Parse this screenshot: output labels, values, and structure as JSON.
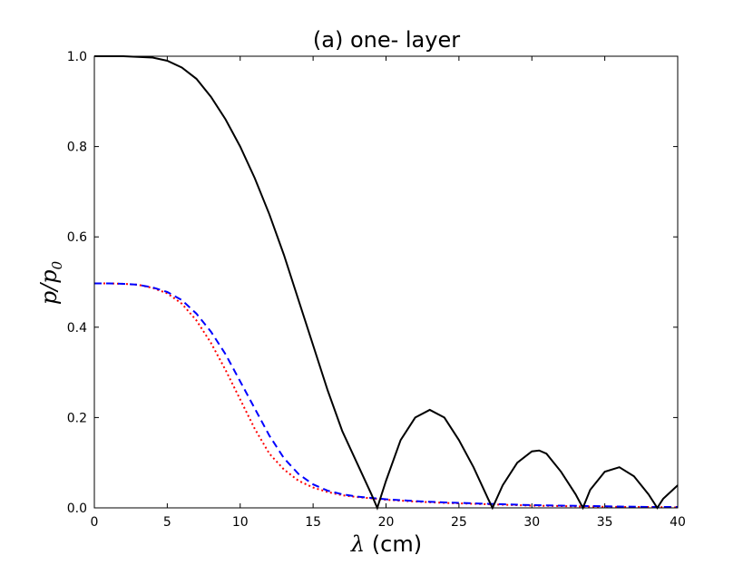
{
  "chart_data": {
    "type": "line",
    "title": "(a) one- layer",
    "xlabel_symbol": "λ",
    "xlabel_unit": " (cm)",
    "ylabel": "p/p",
    "ylabel_sub": "0",
    "xlim": [
      0,
      40
    ],
    "ylim": [
      0,
      1.0
    ],
    "xticks": [
      "0",
      "5",
      "10",
      "15",
      "20",
      "25",
      "30",
      "35",
      "40"
    ],
    "yticks": [
      "0.0",
      "0.2",
      "0.4",
      "0.6",
      "0.8",
      "1.0"
    ],
    "grid": false,
    "legend": "none",
    "series": [
      {
        "color": "#000000",
        "style": "solid",
        "x": [
          0,
          2,
          4,
          5,
          6,
          7,
          8,
          9,
          10,
          11,
          12,
          13,
          14,
          15,
          16,
          17,
          18,
          19,
          19.4,
          20,
          21,
          22,
          23,
          24,
          25,
          26,
          27,
          27.3,
          28,
          29,
          30,
          30.5,
          31,
          32,
          33,
          33.5,
          34,
          35,
          36,
          37,
          38,
          38.6,
          39,
          40
        ],
        "y": [
          1.0,
          1.0,
          0.997,
          0.99,
          0.975,
          0.95,
          0.91,
          0.86,
          0.8,
          0.73,
          0.65,
          0.56,
          0.46,
          0.36,
          0.26,
          0.17,
          0.1,
          0.03,
          0.0,
          0.06,
          0.15,
          0.2,
          0.217,
          0.2,
          0.15,
          0.09,
          0.02,
          0.0,
          0.05,
          0.1,
          0.125,
          0.127,
          0.12,
          0.08,
          0.03,
          0.0,
          0.04,
          0.08,
          0.09,
          0.07,
          0.03,
          0.0,
          0.02,
          0.05
        ]
      },
      {
        "color": "#0000ff",
        "style": "dashed",
        "x": [
          0,
          1,
          2,
          3,
          4,
          5,
          6,
          7,
          8,
          9,
          10,
          11,
          12,
          13,
          14,
          15,
          16,
          17,
          18,
          19,
          20,
          22,
          24,
          26,
          28,
          30,
          32,
          34,
          36,
          38,
          40
        ],
        "y": [
          0.497,
          0.497,
          0.496,
          0.494,
          0.488,
          0.478,
          0.46,
          0.43,
          0.39,
          0.34,
          0.28,
          0.22,
          0.16,
          0.11,
          0.075,
          0.052,
          0.038,
          0.03,
          0.025,
          0.022,
          0.019,
          0.015,
          0.012,
          0.01,
          0.008,
          0.006,
          0.005,
          0.004,
          0.003,
          0.002,
          0.002
        ]
      },
      {
        "color": "#ff0000",
        "style": "dotted",
        "x": [
          0,
          1,
          2,
          3,
          4,
          5,
          6,
          7,
          8,
          9,
          10,
          11,
          12,
          13,
          14,
          15,
          16,
          17,
          18,
          19,
          20,
          22,
          24,
          26,
          28,
          30,
          32,
          34,
          36,
          38,
          40
        ],
        "y": [
          0.497,
          0.497,
          0.496,
          0.494,
          0.487,
          0.475,
          0.452,
          0.415,
          0.365,
          0.305,
          0.24,
          0.175,
          0.12,
          0.085,
          0.06,
          0.045,
          0.035,
          0.028,
          0.024,
          0.021,
          0.018,
          0.014,
          0.011,
          0.009,
          0.007,
          0.005,
          0.004,
          0.003,
          0.002,
          0.002,
          0.001
        ]
      }
    ]
  }
}
